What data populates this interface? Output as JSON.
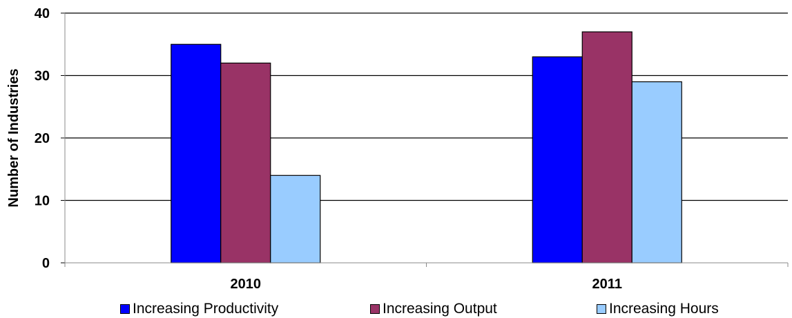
{
  "chart_data": {
    "type": "bar",
    "title": "",
    "xlabel": "",
    "ylabel": "Number of Industries",
    "categories": [
      "2010",
      "2011"
    ],
    "series": [
      {
        "name": "Increasing Productivity",
        "values": [
          35,
          33
        ],
        "color": "#0000ff"
      },
      {
        "name": "Increasing Output",
        "values": [
          32,
          37
        ],
        "color": "#993366"
      },
      {
        "name": "Increasing Hours",
        "values": [
          14,
          29
        ],
        "color": "#99ccff"
      }
    ],
    "ylim": [
      0,
      40
    ],
    "yticks": [
      "0",
      "10",
      "20",
      "30",
      "40"
    ],
    "grid": true,
    "legend_position": "bottom"
  }
}
